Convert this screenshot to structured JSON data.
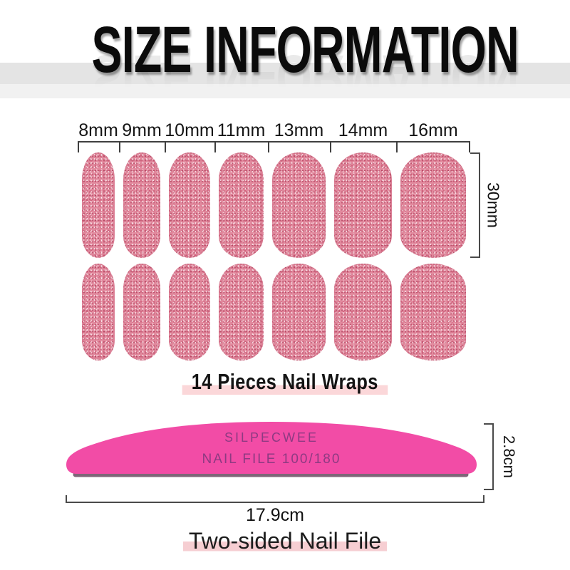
{
  "title": "SIZE INFORMATION",
  "nail_wraps": {
    "sizes": [
      {
        "label": "8mm",
        "mm": 8
      },
      {
        "label": "9mm",
        "mm": 9
      },
      {
        "label": "10mm",
        "mm": 10
      },
      {
        "label": "11mm",
        "mm": 11
      },
      {
        "label": "13mm",
        "mm": 13
      },
      {
        "label": "14mm",
        "mm": 14
      },
      {
        "label": "16mm",
        "mm": 16
      }
    ],
    "height_label": "30mm",
    "rows": 2,
    "pieces_caption": "14 Pieces Nail Wraps"
  },
  "nail_file": {
    "brand": "SILPECWEE",
    "grit": "NAIL FILE 100/180",
    "height_label": "2.8cm",
    "length_label": "17.9cm",
    "caption": "Two-sided Nail File"
  },
  "colors": {
    "glitter_pink": "#e28a9e",
    "glitter_speck_dark": "#a43a55",
    "file_pink": "#f24ca6",
    "file_bottom_edge": "#7e6678",
    "file_text": "#8e3a82",
    "caption_highlight": "#fbd7d9",
    "file_caption_highlight": "#f6ced2",
    "measure_line": "#3f3f3f"
  }
}
